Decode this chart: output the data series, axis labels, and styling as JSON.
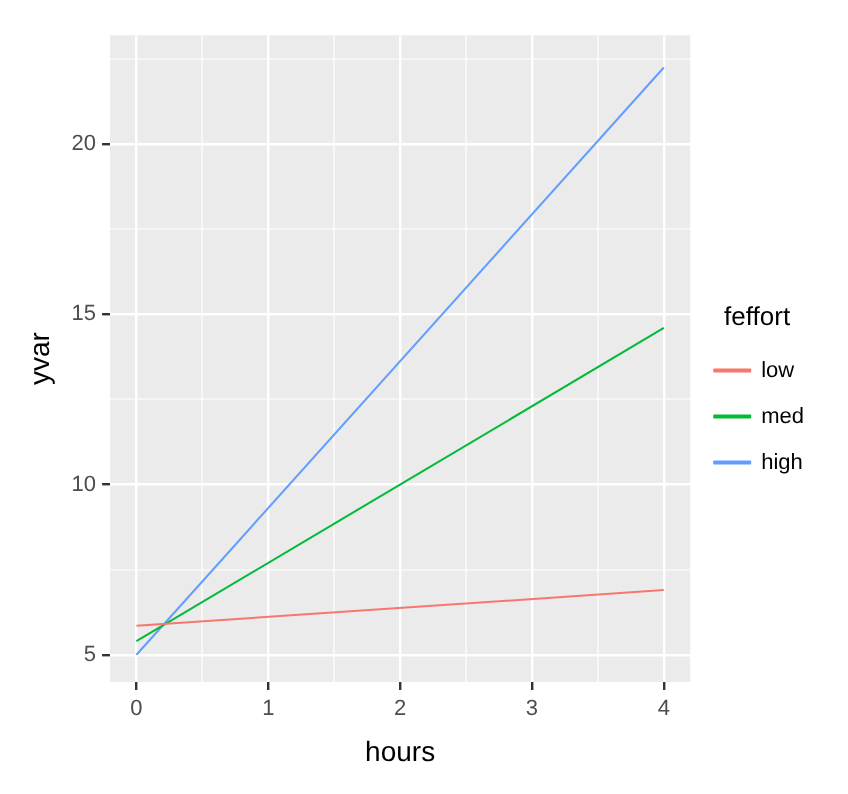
{
  "chart_data": {
    "type": "line",
    "xlabel": "hours",
    "ylabel": "yvar",
    "legend_title": "feffort",
    "legend": "right",
    "grid": true,
    "marker": "none",
    "line_style": "solid",
    "x": [
      0,
      4
    ],
    "xlim": [
      -0.2,
      4.2
    ],
    "xticks": [
      0,
      {
        "value": 0.5,
        "label": null
      },
      1,
      {
        "value": 1.5,
        "label": null
      },
      2,
      {
        "value": 2.5,
        "label": null
      },
      3,
      {
        "value": 3.5,
        "label": null
      },
      4
    ],
    "ylim": [
      4.2,
      23.2
    ],
    "yticks": [
      5,
      {
        "value": 7.5,
        "label": null
      },
      10,
      {
        "value": 12.5,
        "label": null
      },
      15,
      {
        "value": 17.5,
        "label": null
      },
      20,
      {
        "value": 22.5,
        "label": null
      }
    ],
    "series": [
      {
        "name": "low",
        "color": "#f8766d",
        "values": [
          5.85,
          6.9
        ]
      },
      {
        "name": "med",
        "color": "#00ba38",
        "values": [
          5.4,
          14.6
        ]
      },
      {
        "name": "high",
        "color": "#619cff",
        "values": [
          5.0,
          22.25
        ]
      }
    ]
  }
}
